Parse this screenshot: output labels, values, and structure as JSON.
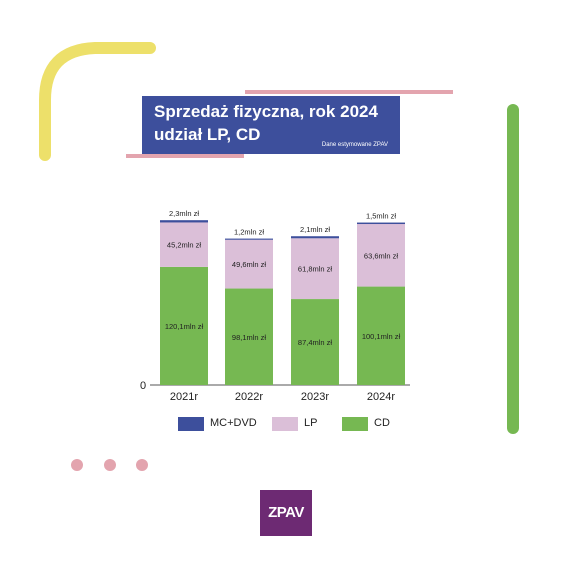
{
  "title": {
    "line1": "Sprzedaż fizyczna, rok 2024",
    "line2": "udział LP, CD",
    "note": "Dane estymowane ZPAV"
  },
  "logo_text": "ZPAV",
  "colors": {
    "cd": "#76b852",
    "lp": "#dbbfd8",
    "mc_dvd": "#3d4f9c",
    "title_bg": "#3d4f9c",
    "accent_yellow": "#ede06a",
    "accent_pink": "#e3a4ae",
    "accent_green": "#76b852",
    "logo_bg": "#6d2a73"
  },
  "chart_data": {
    "type": "bar",
    "stacked": true,
    "categories": [
      "2021r",
      "2022r",
      "2023r",
      "2024r"
    ],
    "series": [
      {
        "name": "CD",
        "values": [
          120.1,
          98.1,
          87.4,
          100.1
        ],
        "labels": [
          "120,1mln zł",
          "98,1mln zł",
          "87,4mln zł",
          "100,1mln zł"
        ]
      },
      {
        "name": "LP",
        "values": [
          45.2,
          49.6,
          61.8,
          63.6
        ],
        "labels": [
          "45,2mln zł",
          "49,6mln zł",
          "61,8mln zł",
          "63,6mln zł"
        ]
      },
      {
        "name": "MC+DVD",
        "values": [
          2.3,
          1.2,
          2.1,
          1.5
        ],
        "labels": [
          "2,3mln zł",
          "1,2mln zł",
          "2,1mln zł",
          "1,5mln zł"
        ]
      }
    ],
    "y_zero_label": "0",
    "legend": [
      "MC+DVD",
      "LP",
      "CD"
    ],
    "legend_position": "bottom",
    "grid": false
  }
}
